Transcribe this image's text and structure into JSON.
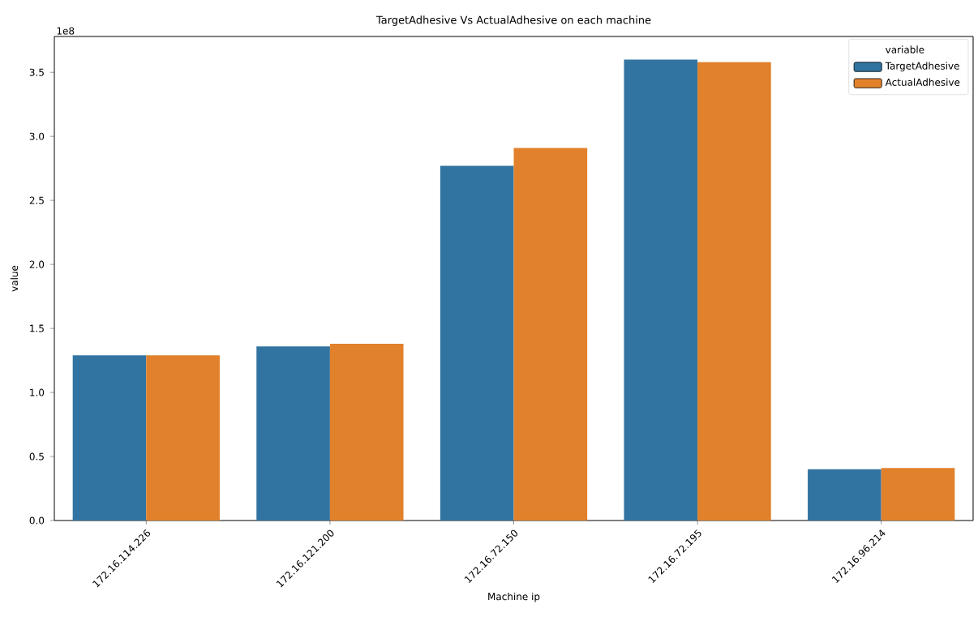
{
  "chart_data": {
    "type": "bar",
    "title": "TargetAdhesive Vs ActualAdhesive on each machine",
    "xlabel": "Machine ip",
    "ylabel": "value",
    "legend_title": "variable",
    "annotations": [
      "1e8"
    ],
    "categories": [
      "172.16.114.226",
      "172.16.121.200",
      "172.16.72.150",
      "172.16.72.195",
      "172.16.96.214"
    ],
    "series": [
      {
        "name": "TargetAdhesive",
        "color": "#3274a1",
        "values": [
          1.29,
          1.36,
          2.77,
          3.6,
          0.4
        ]
      },
      {
        "name": "ActualAdhesive",
        "color": "#e1812c",
        "values": [
          1.29,
          1.38,
          2.91,
          3.58,
          0.41
        ]
      }
    ],
    "ylim": [
      0,
      3.78
    ],
    "yticks": [
      {
        "value": 0,
        "label": "0.0"
      },
      {
        "value": 0.5,
        "label": "0.5"
      },
      {
        "value": 1,
        "label": "1.0"
      },
      {
        "value": 1.5,
        "label": "1.5"
      },
      {
        "value": 2,
        "label": "2.0"
      },
      {
        "value": 2.5,
        "label": "2.5"
      },
      {
        "value": 3,
        "label": "3.0"
      },
      {
        "value": 3.5,
        "label": "3.5"
      }
    ],
    "legend": "top right",
    "grid": false
  }
}
